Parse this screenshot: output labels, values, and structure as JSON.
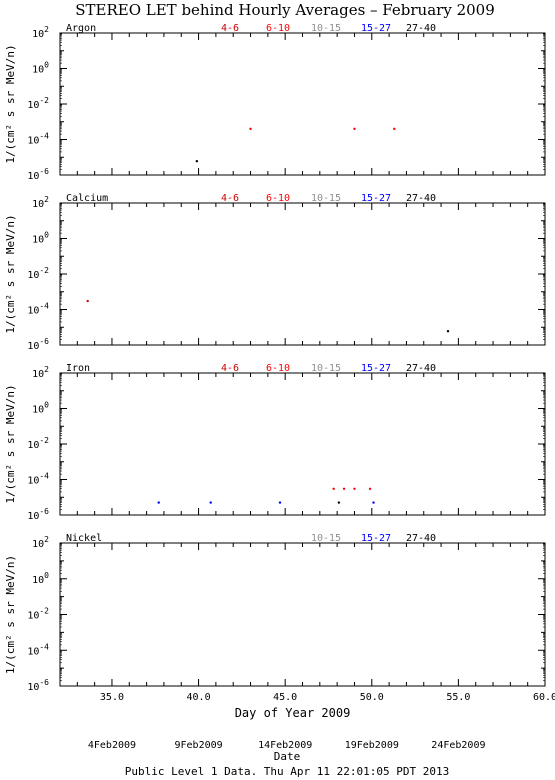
{
  "title": "STEREO LET behind Hourly Averages – February 2009",
  "footer": "Public Level 1 Data. Thu Apr 11 22:01:05 PDT 2013",
  "chart_data": [
    {
      "type": "scatter",
      "element": "Argon",
      "ylabel": "1/(cm² s sr MeV/n)",
      "xlim": [
        32.0,
        60.0
      ],
      "ylim_log10": [
        -6,
        2
      ],
      "ytick_exponents": [
        2,
        0,
        -2,
        -4,
        -6
      ],
      "legend": [
        "4-6",
        "6-10",
        "10-15",
        "15-27",
        "27-40"
      ],
      "series": [
        {
          "name": "4-6",
          "color": "#cc0000",
          "points": []
        },
        {
          "name": "6-10",
          "color": "#ff0000",
          "points": [
            [
              43.0,
              0.0004
            ],
            [
              49.0,
              0.0004
            ],
            [
              51.3,
              0.0004
            ]
          ]
        },
        {
          "name": "10-15",
          "color": "#909090",
          "points": []
        },
        {
          "name": "15-27",
          "color": "#0000ff",
          "points": []
        },
        {
          "name": "27-40",
          "color": "#000000",
          "points": [
            [
              39.9,
              6e-06
            ]
          ]
        }
      ]
    },
    {
      "type": "scatter",
      "element": "Calcium",
      "ylabel": "1/(cm² s sr MeV/n)",
      "xlim": [
        32.0,
        60.0
      ],
      "ylim_log10": [
        -6,
        2
      ],
      "ytick_exponents": [
        2,
        0,
        -2,
        -4,
        -6
      ],
      "legend": [
        "4-6",
        "6-10",
        "10-15",
        "15-27",
        "27-40"
      ],
      "series": [
        {
          "name": "4-6",
          "color": "#cc0000",
          "points": [
            [
              33.6,
              0.0003
            ]
          ]
        },
        {
          "name": "6-10",
          "color": "#ff0000",
          "points": []
        },
        {
          "name": "10-15",
          "color": "#909090",
          "points": []
        },
        {
          "name": "15-27",
          "color": "#0000ff",
          "points": []
        },
        {
          "name": "27-40",
          "color": "#000000",
          "points": [
            [
              54.4,
              6e-06
            ]
          ]
        }
      ]
    },
    {
      "type": "scatter",
      "element": "Iron",
      "ylabel": "1/(cm² s sr MeV/n)",
      "xlim": [
        32.0,
        60.0
      ],
      "ylim_log10": [
        -6,
        2
      ],
      "ytick_exponents": [
        2,
        0,
        -2,
        -4,
        -6
      ],
      "legend": [
        "4-6",
        "6-10",
        "10-15",
        "15-27",
        "27-40"
      ],
      "series": [
        {
          "name": "4-6",
          "color": "#cc0000",
          "points": []
        },
        {
          "name": "6-10",
          "color": "#ff0000",
          "points": [
            [
              47.8,
              3e-05
            ],
            [
              48.4,
              3e-05
            ],
            [
              49.0,
              3e-05
            ],
            [
              49.9,
              3e-05
            ]
          ]
        },
        {
          "name": "10-15",
          "color": "#909090",
          "points": []
        },
        {
          "name": "15-27",
          "color": "#0000ff",
          "points": [
            [
              37.7,
              5e-06
            ],
            [
              40.7,
              5e-06
            ],
            [
              44.7,
              5e-06
            ],
            [
              50.1,
              5e-06
            ]
          ]
        },
        {
          "name": "27-40",
          "color": "#000000",
          "points": [
            [
              48.1,
              5e-06
            ]
          ]
        }
      ]
    },
    {
      "type": "scatter",
      "element": "Nickel",
      "ylabel": "1/(cm² s sr MeV/n)",
      "xlim": [
        32.0,
        60.0
      ],
      "ylim_log10": [
        -6,
        2
      ],
      "ytick_exponents": [
        2,
        0,
        -2,
        -4,
        -6
      ],
      "legend": [
        "10-15",
        "15-27",
        "27-40"
      ],
      "series": [
        {
          "name": "10-15",
          "color": "#909090",
          "points": []
        },
        {
          "name": "15-27",
          "color": "#0000ff",
          "points": []
        },
        {
          "name": "27-40",
          "color": "#000000",
          "points": []
        }
      ],
      "xlabel": "Day of Year 2009",
      "xtick_labels": [
        "35.0",
        "40.0",
        "45.0",
        "50.0",
        "55.0",
        "60.0"
      ],
      "date_axis_title": "Date",
      "date_labels": [
        "4Feb2009",
        "9Feb2009",
        "14Feb2009",
        "19Feb2009",
        "24Feb2009"
      ]
    }
  ]
}
